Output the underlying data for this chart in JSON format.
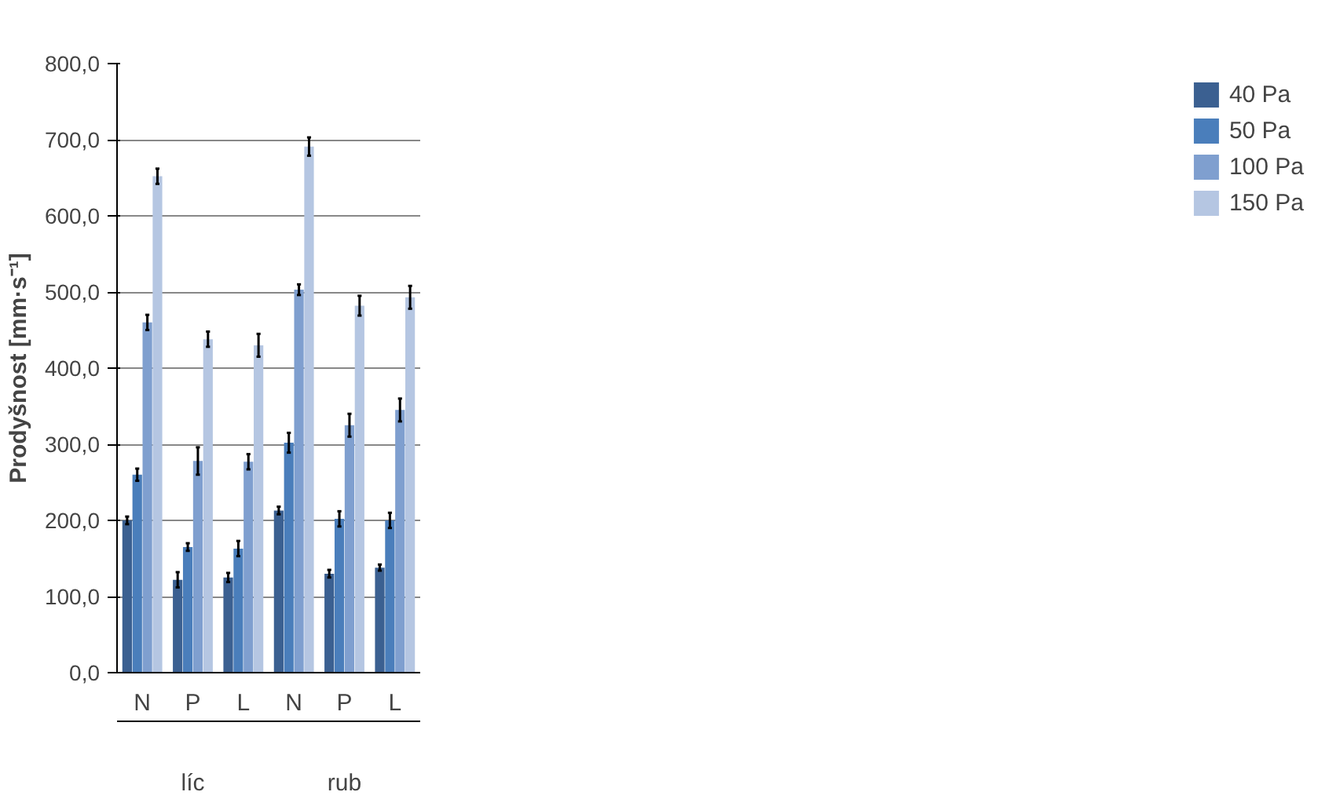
{
  "chart_data": {
    "type": "bar",
    "ylabel": "Prodyšnost [mm·s⁻¹]",
    "categories": [
      "N",
      "P",
      "L",
      "N",
      "P",
      "L"
    ],
    "annotations": [
      "líc",
      "rub"
    ],
    "ylim": [
      0,
      800
    ],
    "yticks": [
      {
        "value": 0,
        "label": "0,0"
      },
      {
        "value": 100,
        "label": "100,0"
      },
      {
        "value": 200,
        "label": "200,0"
      },
      {
        "value": 300,
        "label": "300,0"
      },
      {
        "value": 400,
        "label": "400,0"
      },
      {
        "value": 500,
        "label": "500,0"
      },
      {
        "value": 600,
        "label": "600,0"
      },
      {
        "value": 700,
        "label": "700,0"
      },
      {
        "value": 800,
        "label": "800,0"
      }
    ],
    "grid": "y",
    "legend": "right",
    "series": [
      {
        "name": "40 Pa",
        "color": "#3b6091",
        "values": [
          200,
          122,
          125,
          213,
          130,
          138
        ],
        "errors": [
          5,
          10,
          6,
          5,
          5,
          4
        ]
      },
      {
        "name": "50 Pa",
        "color": "#4a7ebb",
        "values": [
          260,
          165,
          163,
          302,
          202,
          200
        ],
        "errors": [
          8,
          5,
          10,
          13,
          10,
          10
        ]
      },
      {
        "name": "100 Pa",
        "color": "#7f9fcf",
        "values": [
          460,
          278,
          277,
          503,
          325,
          345
        ],
        "errors": [
          10,
          18,
          10,
          7,
          15,
          15
        ]
      },
      {
        "name": "150 Pa",
        "color": "#b5c6e2",
        "values": [
          652,
          438,
          430,
          691,
          482,
          493
        ],
        "errors": [
          10,
          10,
          15,
          12,
          13,
          15
        ]
      }
    ]
  }
}
